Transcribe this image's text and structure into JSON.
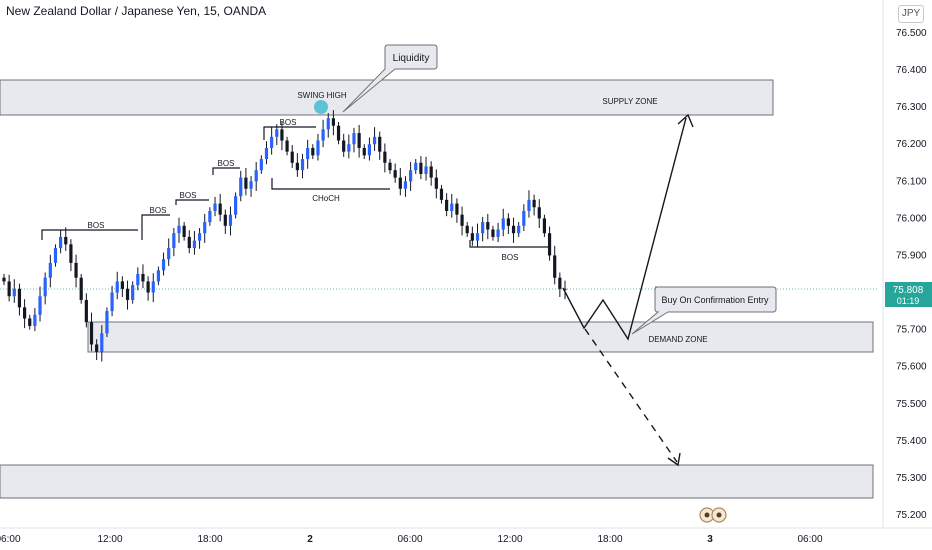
{
  "header": {
    "title": "New Zealand Dollar / Japanese Yen, 15, OANDA",
    "currency_badge": "JPY"
  },
  "price_tag": {
    "price": "75.808",
    "countdown": "01:19",
    "color": "#26a69a"
  },
  "colors": {
    "up_body": "#2962ff",
    "down_body": "#131722",
    "zone_fill": "#e8e9ee",
    "zone_border": "#6f717a",
    "swing_marker": "#5cc3d6",
    "current_line": "#26a69a"
  },
  "annotations": {
    "swing_high": "SWING HIGH",
    "liquidity": "Liquidity",
    "choch": "CHoCH",
    "supply_zone": "SUPPLY ZONE",
    "demand_zone": "DEMAND ZONE",
    "entry_callout": "Buy On Confirmation Entry",
    "bos_labels": [
      "BOS",
      "BOS",
      "BOS",
      "BOS",
      "BOS",
      "BOS"
    ]
  },
  "chart_data": {
    "type": "candlestick",
    "title": "New Zealand Dollar / Japanese Yen, 15, OANDA",
    "ylim": [
      75.16,
      76.56
    ],
    "y_ticks": [
      "76.500",
      "76.400",
      "76.300",
      "76.200",
      "76.100",
      "76.000",
      "75.900",
      "75.800",
      "75.700",
      "75.600",
      "75.500",
      "75.400",
      "75.300",
      "75.200"
    ],
    "x_ticks": [
      "06:00",
      "12:00",
      "18:00",
      "2",
      "06:00",
      "12:00",
      "18:00",
      "3",
      "06:00"
    ],
    "last_price": 75.808,
    "ohlc_closes": [
      75.83,
      75.79,
      75.81,
      75.76,
      75.73,
      75.71,
      75.74,
      75.79,
      75.84,
      75.88,
      75.92,
      75.95,
      75.93,
      75.88,
      75.84,
      75.78,
      75.72,
      75.66,
      75.64,
      75.69,
      75.75,
      75.8,
      75.83,
      75.81,
      75.78,
      75.82,
      75.85,
      75.83,
      75.8,
      75.83,
      75.86,
      75.89,
      75.92,
      75.96,
      75.98,
      75.95,
      75.92,
      75.94,
      75.96,
      75.99,
      76.02,
      76.04,
      76.01,
      75.98,
      76.01,
      76.06,
      76.11,
      76.08,
      76.1,
      76.13,
      76.16,
      76.19,
      76.22,
      76.24,
      76.21,
      76.18,
      76.15,
      76.13,
      76.16,
      76.19,
      76.17,
      76.21,
      76.24,
      76.27,
      76.25,
      76.21,
      76.18,
      76.2,
      76.23,
      76.19,
      76.17,
      76.2,
      76.22,
      76.18,
      76.15,
      76.13,
      76.11,
      76.08,
      76.1,
      76.13,
      76.15,
      76.12,
      76.14,
      76.11,
      76.08,
      76.05,
      76.02,
      76.04,
      76.01,
      75.98,
      75.96,
      75.94,
      75.96,
      75.99,
      75.97,
      75.95,
      75.97,
      76.0,
      75.98,
      75.96,
      75.98,
      76.02,
      76.05,
      76.03,
      76.0,
      75.96,
      75.9,
      75.84,
      75.81,
      75.808
    ],
    "zones": [
      {
        "label": "SUPPLY ZONE",
        "low": 76.275,
        "high": 76.375
      },
      {
        "label": "DEMAND ZONE",
        "low": 75.645,
        "high": 75.715
      },
      {
        "label": "",
        "low": 75.245,
        "high": 75.335
      }
    ],
    "levels": [
      {
        "label": "BOS",
        "price": 75.96
      },
      {
        "label": "BOS",
        "price": 76.01
      },
      {
        "label": "BOS",
        "price": 76.05
      },
      {
        "label": "BOS",
        "price": 76.12
      },
      {
        "label": "BOS",
        "price": 76.26
      },
      {
        "label": "CHoCH",
        "price": 76.07
      },
      {
        "label": "BOS",
        "price": 75.92
      }
    ]
  }
}
